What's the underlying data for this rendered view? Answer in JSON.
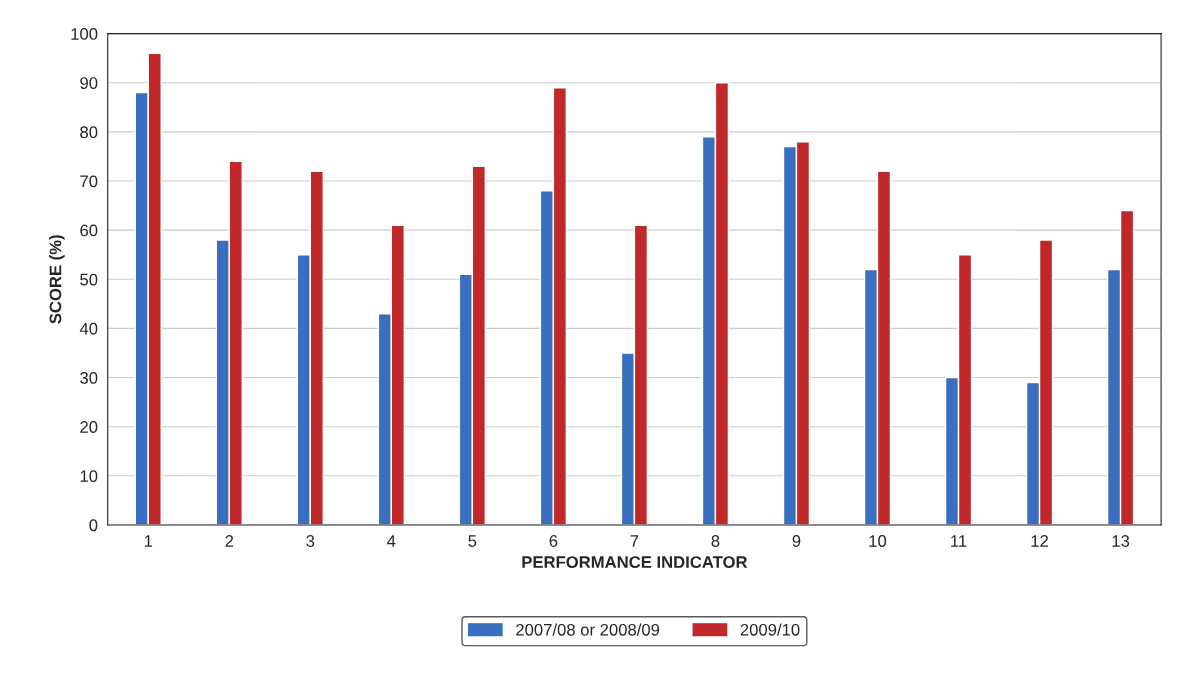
{
  "chart_data": {
    "type": "bar",
    "xlabel": "PERFORMANCE INDICATOR",
    "ylabel": "SCORE (%)",
    "categories": [
      "1",
      "2",
      "3",
      "4",
      "5",
      "6",
      "7",
      "8",
      "9",
      "10",
      "11",
      "12",
      "13"
    ],
    "series": [
      {
        "name": "2007/08 or 2008/09",
        "color": "#3a6fbf",
        "values": [
          88,
          58,
          55,
          43,
          51,
          68,
          35,
          79,
          77,
          52,
          30,
          29,
          52
        ]
      },
      {
        "name": "2009/10",
        "color": "#c0282a",
        "values": [
          96,
          74,
          72,
          61,
          73,
          89,
          61,
          90,
          78,
          72,
          55,
          58,
          64
        ]
      }
    ],
    "ylim": [
      0,
      100
    ],
    "yticks": [
      0,
      10,
      20,
      30,
      40,
      50,
      60,
      70,
      80,
      90,
      100
    ],
    "grid": "y",
    "legend": "bottom"
  }
}
